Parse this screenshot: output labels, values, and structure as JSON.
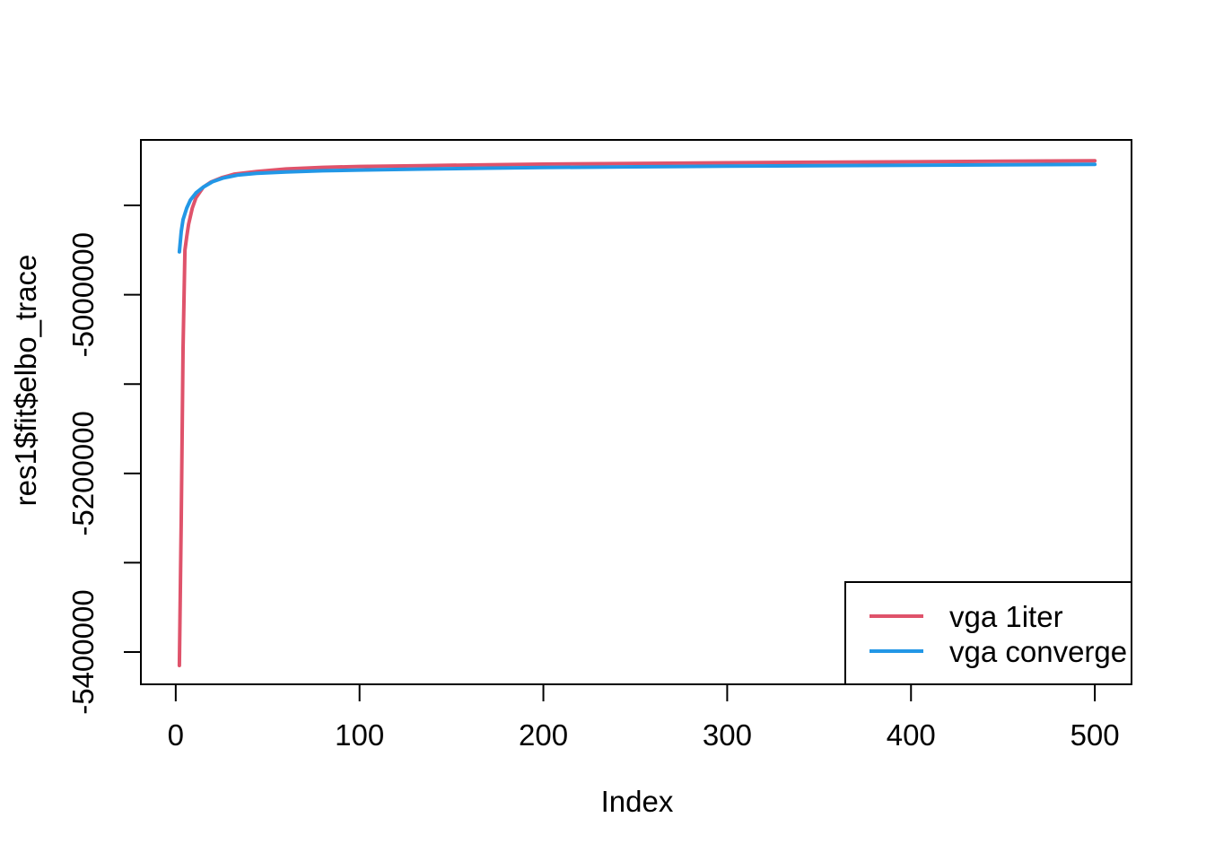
{
  "chart_data": {
    "type": "line",
    "title": "",
    "xlabel": "Index",
    "ylabel": "res1$fit$elbo_trace",
    "x_ticks": [
      0,
      100,
      200,
      300,
      400,
      500
    ],
    "x_tick_labels": [
      "0",
      "100",
      "200",
      "300",
      "400",
      "500"
    ],
    "y_ticks": [
      -4900000,
      -5000000,
      -5100000,
      -5200000,
      -5300000,
      -5400000
    ],
    "y_tick_labels": [
      "",
      "-5000000",
      "",
      "-5200000",
      "",
      "-5400000"
    ],
    "xlim": [
      -18.96,
      519.96
    ],
    "ylim": [
      -5436100,
      -4826700
    ],
    "grid": false,
    "background": "#FFFFFF",
    "axis_color": "#000000",
    "legend_position": "bottomright",
    "series": [
      {
        "name": "vga 1iter",
        "color": "#DF536B",
        "points": [
          [
            2,
            -5415000
          ],
          [
            3,
            -5250000
          ],
          [
            4,
            -5060000
          ],
          [
            5,
            -4950000
          ],
          [
            6,
            -4935000
          ],
          [
            7,
            -4921000
          ],
          [
            9,
            -4903000
          ],
          [
            11,
            -4891500
          ],
          [
            15,
            -4879500
          ],
          [
            19,
            -4874000
          ],
          [
            25,
            -4869000
          ],
          [
            32,
            -4865000
          ],
          [
            44,
            -4862000
          ],
          [
            60,
            -4859200
          ],
          [
            80,
            -4857400
          ],
          [
            100,
            -4856400
          ],
          [
            134,
            -4855500
          ],
          [
            170,
            -4854500
          ],
          [
            200,
            -4853800
          ],
          [
            250,
            -4853000
          ],
          [
            300,
            -4852300
          ],
          [
            350,
            -4851700
          ],
          [
            400,
            -4851200
          ],
          [
            450,
            -4850600
          ],
          [
            500,
            -4850000
          ]
        ]
      },
      {
        "name": "vga converge",
        "color": "#2297E6",
        "points": [
          [
            2,
            -4952000
          ],
          [
            3,
            -4929000
          ],
          [
            4,
            -4916000
          ],
          [
            6,
            -4903000
          ],
          [
            8,
            -4894000
          ],
          [
            11,
            -4886000
          ],
          [
            15,
            -4879500
          ],
          [
            20,
            -4873500
          ],
          [
            26,
            -4869300
          ],
          [
            34,
            -4866000
          ],
          [
            44,
            -4864000
          ],
          [
            60,
            -4862500
          ],
          [
            80,
            -4861200
          ],
          [
            100,
            -4860400
          ],
          [
            134,
            -4859300
          ],
          [
            170,
            -4858300
          ],
          [
            200,
            -4857600
          ],
          [
            250,
            -4856800
          ],
          [
            300,
            -4856100
          ],
          [
            350,
            -4855500
          ],
          [
            400,
            -4855000
          ],
          [
            450,
            -4854500
          ],
          [
            500,
            -4854000
          ]
        ]
      }
    ]
  },
  "legend": {
    "entries": [
      {
        "label": "vga 1iter",
        "color": "#DF536B"
      },
      {
        "label": "vga converge",
        "color": "#2297E6"
      }
    ]
  }
}
